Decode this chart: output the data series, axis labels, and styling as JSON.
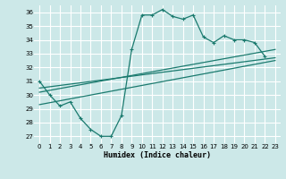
{
  "xlabel": "Humidex (Indice chaleur)",
  "bg_color": "#cce8e8",
  "grid_color": "#ffffff",
  "line_color": "#1a7a6e",
  "xlim": [
    -0.5,
    23.5
  ],
  "ylim": [
    26.5,
    36.5
  ],
  "xticks": [
    0,
    1,
    2,
    3,
    4,
    5,
    6,
    7,
    8,
    9,
    10,
    11,
    12,
    13,
    14,
    15,
    16,
    17,
    18,
    19,
    20,
    21,
    22,
    23
  ],
  "yticks": [
    27,
    28,
    29,
    30,
    31,
    32,
    33,
    34,
    35,
    36
  ],
  "line1_x": [
    0,
    1,
    2,
    3,
    4,
    5,
    6,
    7,
    8,
    9,
    10,
    11,
    12,
    13,
    14,
    15,
    16,
    17,
    18,
    19,
    20,
    21,
    22
  ],
  "line1_y": [
    31.0,
    30.0,
    29.2,
    29.5,
    28.3,
    27.5,
    27.0,
    27.0,
    28.5,
    33.3,
    35.8,
    35.8,
    36.2,
    35.7,
    35.5,
    35.8,
    34.2,
    33.8,
    34.3,
    34.0,
    34.0,
    33.8,
    32.8
  ],
  "line2_x": [
    0,
    23
  ],
  "line2_y": [
    29.3,
    32.5
  ],
  "line3_x": [
    0,
    23
  ],
  "line3_y": [
    30.2,
    33.3
  ],
  "line4_x": [
    0,
    23
  ],
  "line4_y": [
    30.5,
    32.7
  ]
}
